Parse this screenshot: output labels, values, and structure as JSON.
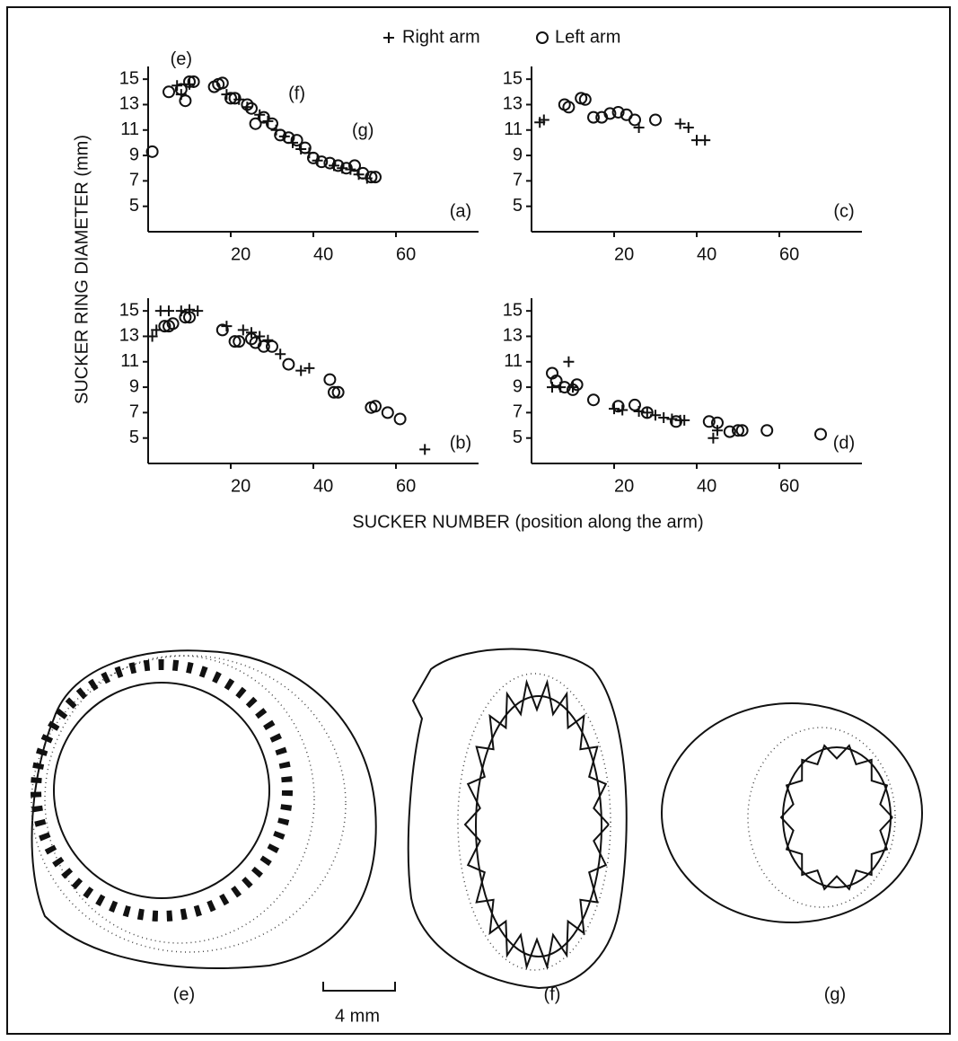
{
  "figure": {
    "ylabel": "SUCKER RING DIAMETER (mm)",
    "xlabel": "SUCKER NUMBER (position along the arm)"
  },
  "chart_data": [
    {
      "type": "scatter",
      "label": "(a)",
      "xlim": [
        0,
        80
      ],
      "ylim": [
        3,
        16
      ],
      "xticks": [
        20,
        40,
        60
      ],
      "yticks": [
        5,
        7,
        9,
        11,
        13,
        15
      ],
      "annotations": [
        {
          "text": "(e)",
          "x": 8,
          "y": 16.5
        },
        {
          "text": "(f)",
          "x": 36,
          "y": 13.8
        },
        {
          "text": "(g)",
          "x": 52,
          "y": 10.9
        }
      ],
      "series": [
        {
          "name": "Right arm",
          "color": "#111",
          "marker": "plus",
          "x": [
            7,
            8,
            10,
            19,
            22,
            24,
            27,
            29,
            31,
            33,
            35,
            37,
            39,
            41,
            45,
            47,
            49,
            51,
            53
          ],
          "values": [
            14.5,
            13.8,
            14.6,
            13.8,
            13.4,
            12.8,
            12.2,
            11.7,
            11,
            10.5,
            10,
            9.5,
            9.2,
            8.6,
            8.2,
            8,
            7.9,
            7.5,
            7.2
          ]
        },
        {
          "name": "Left arm",
          "color": "#111",
          "marker": "circle",
          "x": [
            1,
            5,
            8,
            9,
            10,
            11,
            16,
            17,
            18,
            20,
            21,
            24,
            25,
            26,
            28,
            30,
            32,
            34,
            36,
            38,
            40,
            42,
            44,
            46,
            48,
            50,
            52,
            54,
            55
          ],
          "values": [
            9.3,
            14,
            14.2,
            13.3,
            14.8,
            14.8,
            14.4,
            14.6,
            14.7,
            13.5,
            13.5,
            13,
            12.7,
            11.5,
            12,
            11.5,
            10.6,
            10.4,
            10.2,
            9.6,
            8.8,
            8.5,
            8.4,
            8.2,
            8,
            8.2,
            7.6,
            7.3,
            7.3
          ]
        }
      ]
    },
    {
      "type": "scatter",
      "label": "(c)",
      "xlim": [
        0,
        80
      ],
      "ylim": [
        3,
        16
      ],
      "xticks": [
        20,
        40,
        60
      ],
      "yticks": [
        5,
        7,
        9,
        11,
        13,
        15
      ],
      "series": [
        {
          "name": "Right arm",
          "color": "#111",
          "marker": "plus",
          "x": [
            2,
            3,
            26,
            36,
            38,
            40,
            42
          ],
          "values": [
            11.6,
            11.8,
            11.2,
            11.5,
            11.2,
            10.2,
            10.2
          ]
        },
        {
          "name": "Left arm",
          "color": "#111",
          "marker": "circle",
          "x": [
            8,
            9,
            12,
            13,
            15,
            17,
            19,
            21,
            23,
            25,
            30
          ],
          "values": [
            13,
            12.8,
            13.5,
            13.4,
            12,
            12,
            12.3,
            12.4,
            12.2,
            11.8,
            11.8
          ]
        }
      ]
    },
    {
      "type": "scatter",
      "label": "(b)",
      "xlim": [
        0,
        80
      ],
      "ylim": [
        3,
        16
      ],
      "xticks": [
        20,
        40,
        60
      ],
      "yticks": [
        5,
        7,
        9,
        11,
        13,
        15
      ],
      "series": [
        {
          "name": "Right arm",
          "color": "#111",
          "marker": "plus",
          "x": [
            1,
            2,
            3,
            5,
            8,
            10,
            12,
            19,
            23,
            25,
            27,
            29,
            32,
            37,
            39,
            67
          ],
          "values": [
            13,
            13.5,
            15,
            15,
            15,
            15.1,
            15,
            13.8,
            13.5,
            13.3,
            13,
            12.7,
            11.6,
            10.3,
            10.5,
            4.1
          ]
        },
        {
          "name": "Left arm",
          "color": "#111",
          "marker": "circle",
          "x": [
            4,
            5,
            6,
            9,
            10,
            18,
            21,
            22,
            25,
            26,
            28,
            30,
            34,
            44,
            45,
            46,
            54,
            55,
            58,
            61
          ],
          "values": [
            13.8,
            13.8,
            14,
            14.5,
            14.5,
            13.5,
            12.6,
            12.6,
            12.8,
            12.5,
            12.2,
            12.2,
            10.8,
            9.6,
            8.6,
            8.6,
            7.4,
            7.5,
            7,
            6.5
          ]
        }
      ]
    },
    {
      "type": "scatter",
      "label": "(d)",
      "xlim": [
        0,
        80
      ],
      "ylim": [
        3,
        16
      ],
      "xticks": [
        20,
        40,
        60
      ],
      "yticks": [
        5,
        7,
        9,
        11,
        13,
        15
      ],
      "series": [
        {
          "name": "Right arm",
          "color": "#111",
          "marker": "plus",
          "x": [
            5,
            7,
            9,
            10,
            20,
            22,
            26,
            28,
            30,
            32,
            34,
            36,
            37,
            44,
            45
          ],
          "values": [
            9,
            9,
            11,
            9,
            7.3,
            7.2,
            7.1,
            7,
            6.8,
            6.6,
            6.5,
            6.4,
            6.4,
            5,
            5.6
          ]
        },
        {
          "name": "Left arm",
          "color": "#111",
          "marker": "circle",
          "x": [
            5,
            6,
            8,
            10,
            11,
            15,
            21,
            25,
            28,
            35,
            43,
            45,
            48,
            50,
            51,
            57,
            70
          ],
          "values": [
            10.1,
            9.5,
            9,
            8.8,
            9.2,
            8,
            7.5,
            7.6,
            7,
            6.3,
            6.3,
            6.2,
            5.5,
            5.6,
            5.6,
            5.6,
            5.3
          ]
        }
      ]
    }
  ],
  "drawings": {
    "labels": [
      "(e)",
      "(f)",
      "(g)"
    ],
    "scale_bar": "4 mm"
  }
}
